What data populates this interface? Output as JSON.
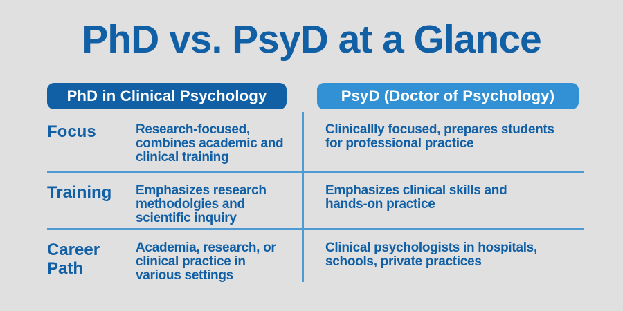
{
  "header": {
    "title": "PhD vs. PsyD at a Glance"
  },
  "columns": [
    {
      "header": "PhD in Clinical Psychology"
    },
    {
      "header": "PsyD (Doctor of Psychology)"
    }
  ],
  "rows": [
    {
      "label": "Focus",
      "phd": "Research-focused,\ncombines academic and\nclinical training",
      "psyd": "Clinicallly focused, prepares students\nfor professional practice"
    },
    {
      "label": "Training",
      "phd": "Emphasizes research\nmethodolgies and\nscientific inquiry",
      "psyd": "Emphasizes clinical skills and\nhands-on practice"
    },
    {
      "label": "Career Path",
      "phd": "Academia, research, or\nclinical practice in\nvarious settings",
      "psyd": "Clinical psychologists in hospitals,\nschools, private practices"
    }
  ],
  "colors": {
    "background": "#e0e0e0",
    "primary_blue": "#115fa5",
    "psyd_blue": "#3191d4",
    "divider_blue": "#4e9ad3",
    "pill_text": "#ffffff"
  }
}
